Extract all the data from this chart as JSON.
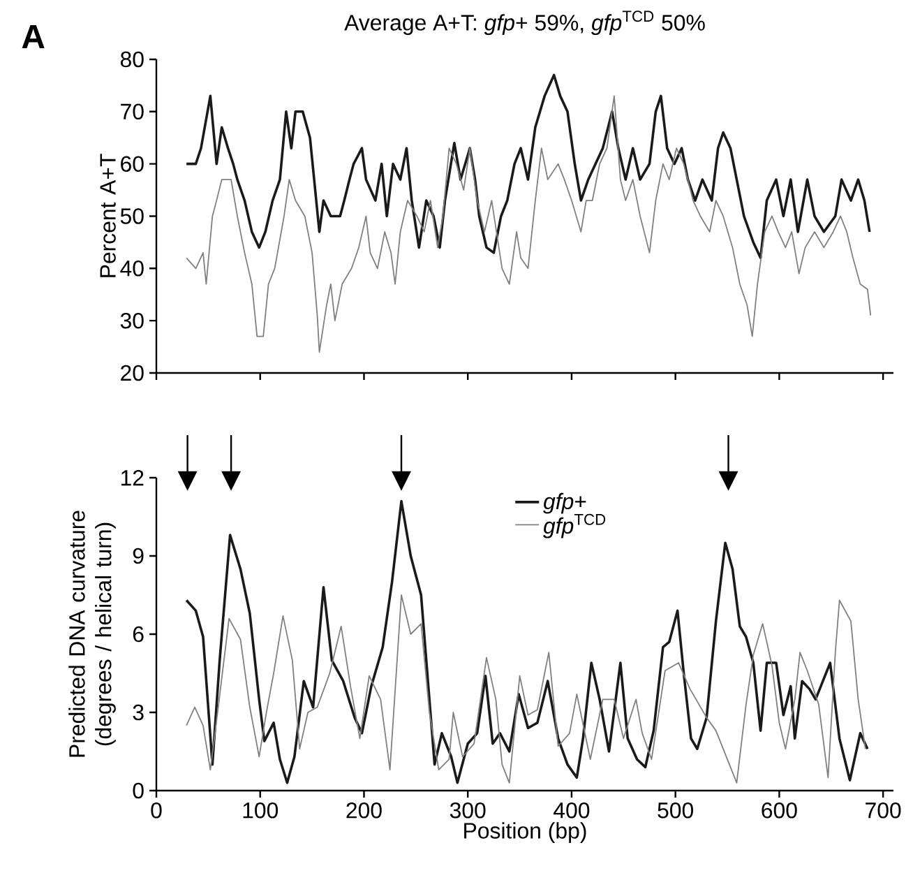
{
  "chart_data": [
    {
      "type": "line",
      "title": "Average A+T: *gfp*+ 59%, *gfp*$^{TCD}$ 50%",
      "ylabel": "Percent  A+T",
      "annotations": [
        "A"
      ],
      "xlim": [
        0,
        710
      ],
      "xticks": [
        0,
        100,
        200,
        300,
        400,
        500,
        600,
        700
      ],
      "ylim": [
        20,
        80
      ],
      "yticks": [
        20,
        30,
        40,
        50,
        60,
        70,
        80
      ],
      "tick_labels": "y",
      "series": [
        {
          "color": "#1a1a1a",
          "x": [
            29,
            38,
            43,
            52,
            58,
            63,
            69,
            74,
            78,
            85,
            92,
            99,
            105,
            112,
            119,
            125,
            130,
            134,
            141,
            148,
            152,
            157,
            161,
            168,
            177,
            181,
            186,
            190,
            198,
            202,
            211,
            217,
            222,
            228,
            235,
            241,
            246,
            253,
            260,
            267,
            273,
            278,
            287,
            293,
            302,
            307,
            311,
            318,
            325,
            332,
            338,
            345,
            351,
            358,
            365,
            374,
            383,
            389,
            396,
            403,
            409,
            416,
            423,
            430,
            439,
            445,
            452,
            459,
            466,
            475,
            481,
            486,
            492,
            499,
            506,
            512,
            519,
            526,
            535,
            541,
            546,
            553,
            559,
            566,
            575,
            582,
            588,
            597,
            604,
            611,
            618,
            627,
            634,
            643,
            654,
            660,
            669,
            676,
            682,
            687
          ],
          "values": [
            60,
            60,
            63,
            73,
            60,
            67,
            63,
            60,
            57,
            53,
            47,
            44,
            47,
            53,
            57,
            70,
            63,
            70,
            70,
            65,
            57,
            47,
            53,
            50,
            50,
            53,
            57,
            60,
            63,
            57,
            53,
            60,
            50,
            60,
            57,
            63,
            53,
            44,
            53,
            50,
            44,
            53,
            64,
            57,
            63,
            57,
            50,
            44,
            43,
            50,
            53,
            60,
            63,
            57,
            67,
            73,
            77,
            73,
            70,
            60,
            53,
            57,
            60,
            63,
            70,
            63,
            57,
            63,
            57,
            60,
            70,
            73,
            63,
            60,
            63,
            57,
            53,
            57,
            53,
            63,
            66,
            63,
            57,
            50,
            45,
            42,
            53,
            57,
            50,
            57,
            47,
            57,
            50,
            47,
            50,
            57,
            53,
            57,
            53,
            47
          ]
        },
        {
          "color": "#808080",
          "x": [
            29,
            38,
            45,
            48,
            54,
            58,
            63,
            72,
            78,
            85,
            92,
            97,
            103,
            108,
            114,
            123,
            128,
            134,
            143,
            150,
            155,
            157,
            164,
            168,
            172,
            179,
            188,
            195,
            202,
            206,
            213,
            220,
            226,
            230,
            235,
            242,
            251,
            258,
            264,
            271,
            276,
            282,
            289,
            296,
            302,
            309,
            316,
            323,
            333,
            340,
            347,
            351,
            358,
            365,
            371,
            377,
            387,
            393,
            400,
            409,
            414,
            420,
            427,
            434,
            441,
            447,
            452,
            459,
            466,
            475,
            481,
            488,
            494,
            501,
            508,
            517,
            524,
            533,
            539,
            546,
            555,
            562,
            569,
            574,
            579,
            586,
            593,
            599,
            606,
            612,
            619,
            625,
            634,
            643,
            652,
            659,
            665,
            671,
            678,
            685,
            688
          ],
          "values": [
            42,
            40,
            43,
            37,
            50,
            53,
            57,
            57,
            50,
            43,
            37,
            27,
            27,
            37,
            40,
            50,
            57,
            53,
            50,
            43,
            31,
            24,
            33,
            37,
            30,
            37,
            40,
            44,
            50,
            43,
            40,
            47,
            43,
            37,
            47,
            53,
            50,
            47,
            53,
            44,
            50,
            63,
            60,
            55,
            63,
            53,
            47,
            53,
            40,
            37,
            47,
            42,
            40,
            53,
            63,
            57,
            60,
            57,
            53,
            47,
            53,
            53,
            60,
            63,
            73,
            57,
            53,
            57,
            50,
            43,
            53,
            60,
            57,
            63,
            60,
            53,
            50,
            47,
            53,
            50,
            44,
            37,
            33,
            27,
            37,
            47,
            50,
            47,
            44,
            47,
            39,
            44,
            47,
            44,
            47,
            50,
            47,
            42,
            37,
            36,
            31
          ]
        }
      ]
    },
    {
      "type": "line",
      "xlabel": "Position (bp)",
      "ylabel": "Predicted DNA curvature (degrees / helical turn)",
      "xlim": [
        0,
        710
      ],
      "xticks": [
        0,
        100,
        200,
        300,
        400,
        500,
        600,
        700
      ],
      "ylim": [
        0,
        12
      ],
      "yticks": [
        0,
        3,
        6,
        9,
        12
      ],
      "legend": "top",
      "series": [
        {
          "name": "*gfp*+",
          "color": "#1a1a1a",
          "x": [
            29,
            38,
            45,
            54,
            61,
            71,
            81,
            90,
            99,
            104,
            113,
            119,
            126,
            133,
            142,
            151,
            161,
            169,
            180,
            191,
            198,
            207,
            218,
            227,
            236,
            245,
            255,
            263,
            268,
            275,
            284,
            290,
            300,
            309,
            317,
            324,
            331,
            340,
            349,
            358,
            367,
            377,
            387,
            396,
            405,
            411,
            419,
            427,
            436,
            447,
            454,
            463,
            471,
            479,
            488,
            494,
            502,
            508,
            515,
            521,
            530,
            539,
            548,
            555,
            562,
            568,
            575,
            582,
            588,
            597,
            604,
            611,
            615,
            622,
            629,
            635,
            649,
            658,
            668,
            678,
            685
          ],
          "values": [
            7.3,
            6.9,
            5.9,
            1.0,
            5,
            9.8,
            8.5,
            6.8,
            3.5,
            1.9,
            2.6,
            1.2,
            0.3,
            1.3,
            4.2,
            3.2,
            7.8,
            5,
            4.2,
            2.8,
            2.2,
            4,
            5.5,
            8,
            11.1,
            9,
            7.5,
            3.5,
            1,
            2.2,
            1.3,
            0.3,
            1.8,
            2.2,
            4.4,
            1.8,
            2.2,
            1.5,
            3.7,
            2.4,
            2.6,
            4.2,
            2,
            1,
            0.5,
            2,
            4.9,
            3.5,
            1.5,
            4.9,
            2,
            1.2,
            0.9,
            2.3,
            5.5,
            5.7,
            6.9,
            4.5,
            2,
            1.6,
            2.8,
            6.5,
            9.5,
            8.5,
            6.3,
            5.9,
            4.9,
            2.3,
            4.9,
            4.9,
            2.9,
            4,
            2,
            4.2,
            3.9,
            3.5,
            4.9,
            2,
            0.4,
            2.2,
            1.6
          ]
        },
        {
          "name": "*gfp*$^{TCD}$",
          "color": "#808080",
          "x": [
            29,
            37,
            45,
            52,
            59,
            70,
            81,
            90,
            99,
            106,
            113,
            122,
            131,
            138,
            146,
            155,
            167,
            178,
            187,
            196,
            205,
            216,
            225,
            236,
            245,
            255,
            263,
            272,
            282,
            286,
            295,
            306,
            318,
            327,
            333,
            340,
            350,
            358,
            367,
            378,
            387,
            398,
            405,
            418,
            430,
            441,
            450,
            462,
            468,
            477,
            490,
            503,
            514,
            530,
            539,
            552,
            559,
            568,
            575,
            584,
            593,
            600,
            606,
            615,
            620,
            627,
            638,
            647,
            654,
            658,
            669,
            676,
            683
          ],
          "values": [
            2.5,
            3.2,
            2.5,
            0.8,
            3,
            6.6,
            5.8,
            3.2,
            1.3,
            3,
            4.5,
            6.7,
            5,
            1.6,
            3,
            3.2,
            4.5,
            6.3,
            4,
            2,
            4.4,
            3.5,
            0.8,
            7.5,
            6,
            6.4,
            3,
            0.8,
            1.2,
            3,
            1.3,
            1.8,
            5.1,
            3.5,
            1,
            0.3,
            4.4,
            2.9,
            3.1,
            5.3,
            1.7,
            2.2,
            3.7,
            1.2,
            3.5,
            3.5,
            2,
            3.5,
            2.2,
            1.2,
            4.6,
            4.9,
            3.9,
            2.8,
            2.3,
            1,
            0.3,
            3.3,
            5.2,
            6.4,
            4.8,
            2.6,
            1.6,
            3.5,
            5.3,
            4.6,
            3.3,
            0.5,
            5.3,
            7.3,
            6.5,
            3.5,
            1.6
          ]
        }
      ]
    }
  ]
}
